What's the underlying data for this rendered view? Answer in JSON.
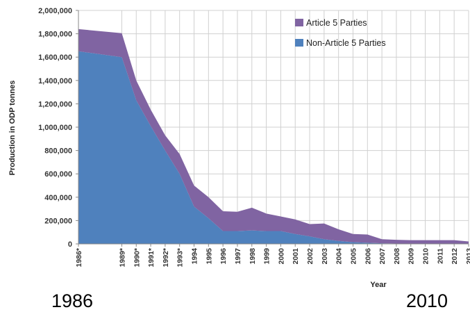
{
  "chart_data": {
    "type": "area",
    "stacked": true,
    "title": "",
    "xlabel": "Year",
    "ylabel": "Production in ODP tonnes",
    "ylim": [
      0,
      2000000
    ],
    "yticks": [
      0,
      200000,
      400000,
      600000,
      800000,
      1000000,
      1200000,
      1400000,
      1600000,
      1800000,
      2000000
    ],
    "ytick_labels": [
      "0",
      "200,000",
      "400,000",
      "600,000",
      "800,000",
      "1,000,000",
      "1,200,000",
      "1,400,000",
      "1,600,000",
      "1,800,000",
      "2,000,000"
    ],
    "x": [
      1986,
      1989,
      1990,
      1991,
      1992,
      1993,
      1994,
      1995,
      1996,
      1997,
      1998,
      1999,
      2000,
      2001,
      2002,
      2003,
      2004,
      2005,
      2006,
      2007,
      2008,
      2009,
      2010,
      2011,
      2012,
      2013
    ],
    "x_tick_labels": [
      "1986*",
      "1989*",
      "1990*",
      "1991*",
      "1992*",
      "1993*",
      "1994",
      "1995",
      "1996",
      "1997",
      "1998",
      "1999",
      "2000",
      "2001",
      "2002",
      "2003",
      "2004",
      "2005",
      "2006",
      "2007",
      "2008",
      "2009",
      "2010",
      "2011",
      "2012",
      "2013"
    ],
    "grid": true,
    "legend_position": "top-right",
    "series": [
      {
        "name": "Non-Article 5 Parties",
        "color": "#4f81bd",
        "values": [
          1650000,
          1600000,
          1230000,
          1010000,
          800000,
          600000,
          320000,
          220000,
          110000,
          110000,
          115000,
          110000,
          110000,
          85000,
          65000,
          40000,
          25000,
          15000,
          10000,
          5000,
          3000,
          2000,
          2000,
          2000,
          2000,
          1000
        ]
      },
      {
        "name": "Article 5 Parties",
        "color": "#8064a2",
        "values": [
          190000,
          205000,
          170000,
          140000,
          130000,
          170000,
          180000,
          180000,
          170000,
          165000,
          195000,
          150000,
          125000,
          125000,
          105000,
          135000,
          100000,
          70000,
          70000,
          35000,
          32000,
          30000,
          30000,
          30000,
          30000,
          20000
        ]
      }
    ]
  },
  "captions": {
    "left": "1986",
    "right": "2010"
  }
}
